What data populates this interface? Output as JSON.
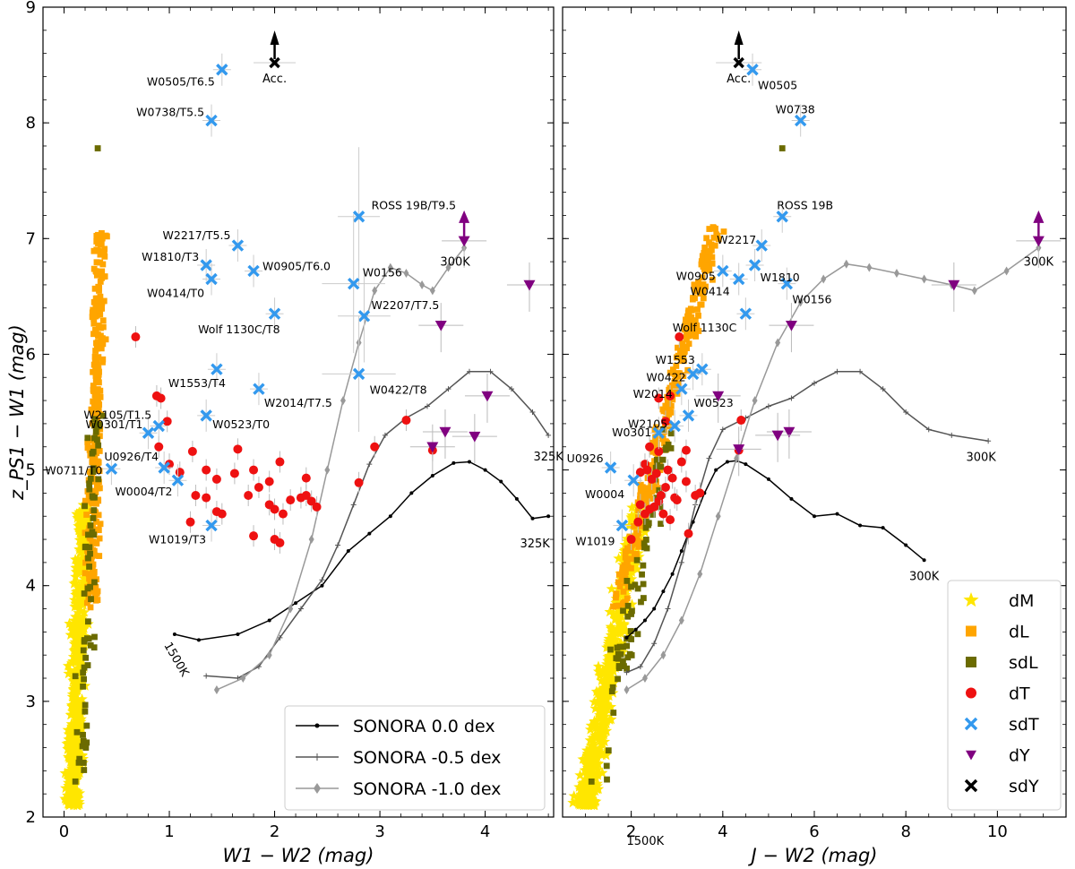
{
  "chart_data": [
    {
      "type": "scatter",
      "xlabel": "W1 − W2 (mag)",
      "ylabel": "z_PS1 − W1 (mag)",
      "xlim": [
        -0.2,
        4.65
      ],
      "ylim": [
        2,
        9
      ],
      "xticks": [
        0,
        1,
        2,
        3,
        4
      ],
      "yticks": [
        2,
        3,
        4,
        5,
        6,
        7,
        8,
        9
      ],
      "legend": {
        "placement": "bottom-right",
        "entries": [
          {
            "label": "SONORA 0.0 dex",
            "color": "#000000"
          },
          {
            "label": "SONORA -0.5 dex",
            "color": "#555555"
          },
          {
            "label": "SONORA -1.0 dex",
            "color": "#999999"
          }
        ]
      },
      "model_series": [
        {
          "name": "SONORA 0.0 dex",
          "color": "#000000",
          "marker": "dot",
          "x": [
            1.05,
            1.28,
            1.65,
            1.95,
            2.2,
            2.45,
            2.7,
            2.9,
            3.1,
            3.3,
            3.5,
            3.7,
            3.85,
            4.0,
            4.15,
            4.3,
            4.45,
            4.6
          ],
          "y": [
            3.58,
            3.53,
            3.58,
            3.7,
            3.85,
            4.0,
            4.3,
            4.45,
            4.6,
            4.8,
            4.95,
            5.06,
            5.07,
            5.0,
            4.9,
            4.75,
            4.58,
            4.6
          ],
          "start_label": "1500K",
          "end_label": "325K"
        },
        {
          "name": "SONORA -0.5 dex",
          "color": "#555555",
          "marker": "plus",
          "x": [
            1.35,
            1.65,
            1.85,
            2.05,
            2.25,
            2.45,
            2.6,
            2.75,
            2.9,
            3.05,
            3.25,
            3.45,
            3.65,
            3.85,
            4.05,
            4.25,
            4.45,
            4.6
          ],
          "y": [
            3.22,
            3.2,
            3.3,
            3.55,
            3.8,
            4.05,
            4.35,
            4.7,
            5.05,
            5.3,
            5.45,
            5.55,
            5.7,
            5.85,
            5.85,
            5.7,
            5.5,
            5.3
          ],
          "end_label": "325K"
        },
        {
          "name": "SONORA -1.0 dex",
          "color": "#999999",
          "marker": "diamond",
          "x": [
            1.45,
            1.7,
            1.95,
            2.15,
            2.35,
            2.5,
            2.65,
            2.8,
            2.95,
            3.1,
            3.25,
            3.4,
            3.5,
            3.65,
            3.8
          ],
          "y": [
            3.1,
            3.2,
            3.4,
            3.8,
            4.4,
            5.0,
            5.6,
            6.1,
            6.55,
            6.75,
            6.7,
            6.6,
            6.55,
            6.75,
            6.92
          ],
          "end_label": "300K"
        }
      ],
      "errorbar_series": [
        {
          "name": "ROSS 19B/T9.5",
          "type": "sdT",
          "x": 2.8,
          "y": 7.19,
          "xerr": 0.2,
          "yerr": 0.6
        },
        {
          "name": "W0156",
          "type": "sdT",
          "x": 2.75,
          "y": 6.61,
          "xerr": 0.3,
          "yerr": 0.6
        },
        {
          "name": "W2207/T7.5",
          "type": "sdT",
          "x": 2.85,
          "y": 6.33,
          "xerr": 0.25,
          "yerr": 0.4
        },
        {
          "name": "W0422/T8",
          "type": "sdT",
          "x": 2.8,
          "y": 5.83,
          "xerr": 0.35,
          "yerr": 0.5
        },
        {
          "name": "Acc.",
          "type": "sdY",
          "x": 2.0,
          "y": 8.52,
          "xerr": 0.2,
          "yerr": 0.05
        }
      ],
      "labeled_points": [
        {
          "name": "W0505/T6.5",
          "type": "sdT",
          "x": 1.5,
          "y": 8.46
        },
        {
          "name": "W0738/T5.5",
          "type": "sdT",
          "x": 1.4,
          "y": 8.02
        },
        {
          "name": "ROSS 19B/T9.5",
          "type": "sdT",
          "x": 2.8,
          "y": 7.19
        },
        {
          "name": "W2217/T5.5",
          "type": "sdT",
          "x": 1.65,
          "y": 6.94
        },
        {
          "name": "W1810/T3",
          "type": "sdT",
          "x": 1.35,
          "y": 6.77
        },
        {
          "name": "W0905/T6.0",
          "type": "sdT",
          "x": 1.8,
          "y": 6.72
        },
        {
          "name": "W0414/T0",
          "type": "sdT",
          "x": 1.4,
          "y": 6.65
        },
        {
          "name": "W0156",
          "type": "sdT",
          "x": 2.75,
          "y": 6.61
        },
        {
          "name": "W2207/T7.5",
          "type": "sdT",
          "x": 2.85,
          "y": 6.33
        },
        {
          "name": "Wolf 1130C/T8",
          "type": "sdT",
          "x": 2.0,
          "y": 6.35
        },
        {
          "name": "W1553/T4",
          "type": "sdT",
          "x": 1.45,
          "y": 5.87
        },
        {
          "name": "W2014/T7.5",
          "type": "sdT",
          "x": 1.85,
          "y": 5.7
        },
        {
          "name": "W0422/T8",
          "type": "sdT",
          "x": 2.8,
          "y": 5.83
        },
        {
          "name": "W2105/T1.5",
          "type": "sdT",
          "x": 0.9,
          "y": 5.38
        },
        {
          "name": "W0523/T0",
          "type": "sdT",
          "x": 1.35,
          "y": 5.47
        },
        {
          "name": "W0301/T1",
          "type": "sdT",
          "x": 0.8,
          "y": 5.32
        },
        {
          "name": "W0711/T0",
          "type": "sdT",
          "x": 0.45,
          "y": 5.01
        },
        {
          "name": "U0926/T4",
          "type": "sdT",
          "x": 0.95,
          "y": 5.02
        },
        {
          "name": "W0004/T2",
          "type": "sdT",
          "x": 1.08,
          "y": 4.91
        },
        {
          "name": "W1019/T3",
          "type": "sdT",
          "x": 1.4,
          "y": 4.52
        }
      ],
      "dY_points": [
        {
          "x": 3.8,
          "y": 6.98,
          "upward_arrow": true
        },
        {
          "x": 3.58,
          "y": 6.25
        },
        {
          "x": 4.42,
          "y": 6.6
        },
        {
          "x": 4.02,
          "y": 5.64
        },
        {
          "x": 3.62,
          "y": 5.33
        },
        {
          "x": 3.5,
          "y": 5.2
        },
        {
          "x": 3.9,
          "y": 5.29
        }
      ],
      "dT_points": [
        {
          "x": 0.68,
          "y": 6.15
        },
        {
          "x": 0.88,
          "y": 5.64
        },
        {
          "x": 0.92,
          "y": 5.62
        },
        {
          "x": 0.98,
          "y": 5.42
        },
        {
          "x": 0.9,
          "y": 5.2
        },
        {
          "x": 1.0,
          "y": 5.05
        },
        {
          "x": 1.1,
          "y": 4.98
        },
        {
          "x": 1.22,
          "y": 5.16
        },
        {
          "x": 1.35,
          "y": 5.0
        },
        {
          "x": 1.45,
          "y": 4.92
        },
        {
          "x": 1.62,
          "y": 4.97
        },
        {
          "x": 1.8,
          "y": 5.0
        },
        {
          "x": 1.85,
          "y": 4.85
        },
        {
          "x": 2.05,
          "y": 5.07
        },
        {
          "x": 1.95,
          "y": 4.9
        },
        {
          "x": 2.3,
          "y": 4.93
        },
        {
          "x": 2.25,
          "y": 4.76
        },
        {
          "x": 2.35,
          "y": 4.73
        },
        {
          "x": 2.4,
          "y": 4.68
        },
        {
          "x": 2.15,
          "y": 4.74
        },
        {
          "x": 2.08,
          "y": 4.62
        },
        {
          "x": 2.0,
          "y": 4.66
        },
        {
          "x": 1.95,
          "y": 4.7
        },
        {
          "x": 1.75,
          "y": 4.78
        },
        {
          "x": 1.5,
          "y": 4.62
        },
        {
          "x": 1.45,
          "y": 4.64
        },
        {
          "x": 1.35,
          "y": 4.76
        },
        {
          "x": 1.25,
          "y": 4.78
        },
        {
          "x": 1.2,
          "y": 4.55
        },
        {
          "x": 1.65,
          "y": 5.18
        },
        {
          "x": 2.0,
          "y": 4.4
        },
        {
          "x": 2.05,
          "y": 4.37
        },
        {
          "x": 2.8,
          "y": 4.89
        },
        {
          "x": 3.25,
          "y": 5.43
        },
        {
          "x": 3.5,
          "y": 5.17
        },
        {
          "x": 2.95,
          "y": 5.2
        },
        {
          "x": 2.3,
          "y": 4.78
        },
        {
          "x": 1.8,
          "y": 4.43
        }
      ]
    },
    {
      "type": "scatter",
      "xlabel": "J − W2 (mag)",
      "ylabel": "",
      "xlim": [
        0.5,
        11.5
      ],
      "ylim": [
        2,
        9
      ],
      "xticks": [
        2,
        4,
        6,
        8,
        10
      ],
      "yticks": [
        2,
        3,
        4,
        5,
        6,
        7,
        8,
        9
      ],
      "legend": {
        "placement": "bottom-right",
        "entries": [
          {
            "label": "dM",
            "color": "#ffe600",
            "marker": "star"
          },
          {
            "label": "dL",
            "color": "#ffa500",
            "marker": "square"
          },
          {
            "label": "sdL",
            "color": "#6b6b00",
            "marker": "square"
          },
          {
            "label": "dT",
            "color": "#ee1111",
            "marker": "circle"
          },
          {
            "label": "sdT",
            "color": "#3399ee",
            "marker": "x"
          },
          {
            "label": "dY",
            "color": "#800080",
            "marker": "triangle-down"
          },
          {
            "label": "sdY",
            "color": "#000000",
            "marker": "x"
          }
        ]
      },
      "model_series": [
        {
          "name": "SONORA 0.0 dex",
          "color": "#000000",
          "marker": "dot",
          "x": [
            1.9,
            2.1,
            2.3,
            2.5,
            2.7,
            2.9,
            3.1,
            3.35,
            3.6,
            3.85,
            4.1,
            4.3,
            4.5,
            5.0,
            5.5,
            6.0,
            6.5,
            7.0,
            7.5,
            8.0,
            8.4
          ],
          "y": [
            3.55,
            3.62,
            3.7,
            3.8,
            3.95,
            4.1,
            4.3,
            4.55,
            4.8,
            5.0,
            5.07,
            5.08,
            5.05,
            4.92,
            4.75,
            4.6,
            4.62,
            4.52,
            4.5,
            4.35,
            4.22
          ],
          "start_label": "1500K",
          "end_label": "300K"
        },
        {
          "name": "SONORA -0.5 dex",
          "color": "#555555",
          "marker": "plus",
          "x": [
            1.9,
            2.2,
            2.5,
            2.8,
            3.1,
            3.4,
            3.7,
            4.0,
            4.5,
            5.0,
            5.5,
            6.0,
            6.5,
            7.0,
            7.5,
            8.0,
            8.5,
            9.0,
            9.8
          ],
          "y": [
            3.25,
            3.3,
            3.5,
            3.8,
            4.2,
            4.7,
            5.1,
            5.35,
            5.45,
            5.55,
            5.62,
            5.75,
            5.85,
            5.85,
            5.7,
            5.5,
            5.35,
            5.3,
            5.25
          ],
          "end_label": "300K"
        },
        {
          "name": "SONORA -1.0 dex",
          "color": "#999999",
          "marker": "diamond",
          "x": [
            1.9,
            2.3,
            2.7,
            3.1,
            3.5,
            3.9,
            4.3,
            4.7,
            5.2,
            5.7,
            6.2,
            6.7,
            7.2,
            7.8,
            8.4,
            9.0,
            9.5,
            10.2,
            10.9
          ],
          "y": [
            3.1,
            3.2,
            3.4,
            3.7,
            4.1,
            4.6,
            5.1,
            5.6,
            6.1,
            6.45,
            6.65,
            6.78,
            6.75,
            6.7,
            6.65,
            6.6,
            6.55,
            6.72,
            6.92
          ],
          "end_label": "300K"
        }
      ],
      "errorbar_series": [
        {
          "name": "Acc.",
          "type": "sdY",
          "x": 4.35,
          "y": 8.52,
          "xerr": 0.5,
          "yerr": 0.05
        }
      ],
      "labeled_points": [
        {
          "name": "W0505",
          "type": "sdT",
          "x": 4.65,
          "y": 8.46
        },
        {
          "name": "W0738",
          "type": "sdT",
          "x": 5.7,
          "y": 8.02
        },
        {
          "name": "ROSS 19B",
          "type": "sdT",
          "x": 5.3,
          "y": 7.19
        },
        {
          "name": "W2217",
          "type": "sdT",
          "x": 4.85,
          "y": 6.94
        },
        {
          "name": "W0905",
          "type": "sdT",
          "x": 4.0,
          "y": 6.72
        },
        {
          "name": "W1810",
          "type": "sdT",
          "x": 4.7,
          "y": 6.77
        },
        {
          "name": "W0414",
          "type": "sdT",
          "x": 4.35,
          "y": 6.65
        },
        {
          "name": "W0156",
          "type": "sdT",
          "x": 5.4,
          "y": 6.61
        },
        {
          "name": "Wolf 1130C",
          "type": "sdT",
          "x": 4.5,
          "y": 6.35
        },
        {
          "name": "W1553",
          "type": "sdT",
          "x": 3.55,
          "y": 5.87
        },
        {
          "name": "W0422",
          "type": "sdT",
          "x": 3.35,
          "y": 5.83
        },
        {
          "name": "W2014",
          "type": "sdT",
          "x": 3.1,
          "y": 5.7
        },
        {
          "name": "W0523",
          "type": "sdT",
          "x": 3.25,
          "y": 5.47
        },
        {
          "name": "W2105",
          "type": "sdT",
          "x": 2.95,
          "y": 5.38
        },
        {
          "name": "W0301",
          "type": "sdT",
          "x": 2.6,
          "y": 5.32
        },
        {
          "name": "U0926",
          "type": "sdT",
          "x": 1.55,
          "y": 5.02
        },
        {
          "name": "W0004",
          "type": "sdT",
          "x": 2.05,
          "y": 4.91
        },
        {
          "name": "W1019",
          "type": "sdT",
          "x": 1.8,
          "y": 4.52
        }
      ],
      "dY_points": [
        {
          "x": 10.9,
          "y": 6.98,
          "upward_arrow": true
        },
        {
          "x": 5.5,
          "y": 6.25
        },
        {
          "x": 9.05,
          "y": 6.6
        },
        {
          "x": 3.9,
          "y": 5.64
        },
        {
          "x": 5.45,
          "y": 5.33
        },
        {
          "x": 5.2,
          "y": 5.3
        },
        {
          "x": 4.35,
          "y": 5.18
        }
      ],
      "dT_points": [
        {
          "x": 3.05,
          "y": 6.15
        },
        {
          "x": 2.85,
          "y": 5.64
        },
        {
          "x": 2.6,
          "y": 5.62
        },
        {
          "x": 2.75,
          "y": 5.42
        },
        {
          "x": 2.4,
          "y": 5.2
        },
        {
          "x": 2.3,
          "y": 5.05
        },
        {
          "x": 2.2,
          "y": 4.98
        },
        {
          "x": 2.6,
          "y": 5.16
        },
        {
          "x": 2.8,
          "y": 5.0
        },
        {
          "x": 2.45,
          "y": 4.92
        },
        {
          "x": 2.55,
          "y": 4.97
        },
        {
          "x": 2.35,
          "y": 5.0
        },
        {
          "x": 2.75,
          "y": 4.85
        },
        {
          "x": 3.1,
          "y": 5.07
        },
        {
          "x": 3.2,
          "y": 4.9
        },
        {
          "x": 2.9,
          "y": 4.93
        },
        {
          "x": 2.95,
          "y": 4.76
        },
        {
          "x": 2.6,
          "y": 4.73
        },
        {
          "x": 2.5,
          "y": 4.68
        },
        {
          "x": 3.0,
          "y": 4.74
        },
        {
          "x": 2.7,
          "y": 4.62
        },
        {
          "x": 2.4,
          "y": 4.66
        },
        {
          "x": 2.2,
          "y": 4.7
        },
        {
          "x": 2.65,
          "y": 4.78
        },
        {
          "x": 2.3,
          "y": 4.62
        },
        {
          "x": 3.4,
          "y": 4.78
        },
        {
          "x": 3.25,
          "y": 4.45
        },
        {
          "x": 2.15,
          "y": 4.55
        },
        {
          "x": 3.2,
          "y": 5.17
        },
        {
          "x": 4.4,
          "y": 5.43
        },
        {
          "x": 4.35,
          "y": 5.17
        },
        {
          "x": 2.85,
          "y": 4.57
        },
        {
          "x": 3.5,
          "y": 4.8
        },
        {
          "x": 2.0,
          "y": 4.4
        }
      ]
    }
  ]
}
